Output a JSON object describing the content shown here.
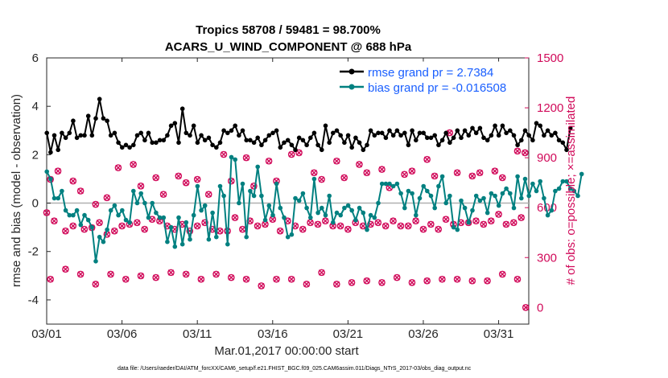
{
  "chart_data": {
    "type": "line",
    "title_line1": "Tropics 58708 / 59481 = 98.700%",
    "title_line2": "ACARS_U_WIND_COMPONENT @ 688 hPa",
    "xlabel": "Mar.01,2017 00:00:00 start",
    "ylabel_left": "rmse and bias (model - observation)",
    "ylabel_right": "# of obs: o=possible; ×=assimilated",
    "xlim": [
      0,
      32
    ],
    "ylim_left": [
      -5,
      6
    ],
    "ylim_right": [
      -100,
      1500
    ],
    "x_ticks": [
      0,
      5,
      10,
      15,
      20,
      25,
      30
    ],
    "x_tick_labels": [
      "03/01",
      "03/06",
      "03/11",
      "03/16",
      "03/21",
      "03/26",
      "03/31"
    ],
    "y_ticks_left": [
      6,
      4,
      2,
      0,
      -2,
      -4
    ],
    "y_tick_labels_left": [
      "6",
      "4",
      "2",
      "0",
      "-2",
      "-4"
    ],
    "y_ticks_right": [
      1500,
      1200,
      900,
      600,
      300,
      0
    ],
    "y_tick_labels_right": [
      "1500",
      "1200",
      "900",
      "600",
      "300",
      "0"
    ],
    "time_step_days": 0.25,
    "series": [
      {
        "name": "rmse",
        "legend": "rmse grand pr = 2.7384",
        "color": "#000000",
        "values": [
          2.9,
          2.1,
          2.8,
          2.2,
          2.9,
          2.7,
          2.9,
          3.4,
          2.7,
          2.8,
          2.8,
          3.6,
          2.8,
          3.5,
          4.3,
          3.5,
          3.4,
          2.8,
          2.9,
          2.5,
          2.3,
          2.4,
          2.3,
          2.4,
          2.8,
          2.9,
          2.6,
          2.9,
          2.5,
          2.5,
          2.6,
          2.6,
          2.8,
          3.2,
          3.3,
          2.5,
          3.9,
          2.9,
          2.8,
          3.2,
          2.5,
          2.8,
          2.6,
          2.7,
          2.4,
          2.3,
          2.5,
          3.0,
          2.9,
          3.0,
          3.2,
          2.8,
          3.0,
          2.6,
          2.6,
          2.5,
          2.7,
          2.4,
          2.6,
          2.8,
          2.9,
          3.0,
          2.3,
          2.5,
          2.6,
          2.4,
          2.2,
          2.7,
          2.6,
          2.4,
          2.7,
          2.9,
          2.4,
          2.2,
          3.2,
          2.5,
          2.9,
          3.0,
          2.8,
          2.5,
          2.8,
          2.3,
          2.7,
          2.5,
          2.2,
          2.4,
          3.0,
          2.8,
          2.9,
          2.9,
          2.7,
          3.0,
          2.8,
          3.0,
          2.8,
          2.9,
          2.4,
          3.0,
          2.6,
          2.9,
          2.9,
          2.7,
          2.7,
          2.8,
          2.4,
          2.6,
          2.9,
          2.5,
          2.7,
          3.0,
          2.7,
          3.0,
          2.8,
          3.1,
          2.9,
          3.1,
          2.7,
          2.6,
          2.8,
          3.2,
          2.8,
          3.2,
          2.9,
          3.0,
          2.8,
          2.4,
          2.6,
          3.0,
          2.8,
          2.6,
          3.3,
          3.2,
          2.8,
          3.0,
          2.8,
          2.9,
          2.6,
          2.5,
          2.2,
          3.1
        ]
      },
      {
        "name": "bias",
        "legend": "bias grand pr = -0.016508",
        "color": "#008080",
        "values": [
          1.3,
          1.0,
          0.2,
          0.2,
          0.5,
          -0.3,
          -0.5,
          -0.5,
          -0.3,
          -0.9,
          -0.5,
          -0.7,
          -1.0,
          -2.4,
          -1.4,
          -1.6,
          -1.1,
          -0.3,
          -0.1,
          -0.5,
          -0.3,
          -0.7,
          -0.8,
          0.5,
          0.0,
          0.4,
          0.0,
          -0.6,
          0.0,
          -0.4,
          -0.6,
          -0.6,
          -1.6,
          -1.0,
          -1.8,
          -0.6,
          -1.7,
          -0.8,
          -1.5,
          -0.5,
          0.7,
          -0.3,
          -0.1,
          -1.5,
          -0.4,
          -1.4,
          0.7,
          0.3,
          -1.7,
          1.9,
          1.8,
          0.0,
          0.8,
          -1.4,
          0.5,
          0.3,
          1.5,
          0.3,
          -0.7,
          -0.1,
          -0.5,
          0.8,
          -0.2,
          -0.6,
          -1.4,
          -1.3,
          0.2,
          0.1,
          0.4,
          -0.2,
          -0.6,
          1.0,
          -0.4,
          -0.2,
          -0.5,
          0.3,
          -0.8,
          -0.4,
          -0.5,
          -0.2,
          -0.1,
          -0.3,
          -0.7,
          -0.2,
          -0.4,
          -1.1,
          -0.5,
          -0.6,
          0.0,
          0.8,
          0.8,
          0.8,
          0.7,
          0.8,
          0.4,
          -0.2,
          0.5,
          0.4,
          -0.5,
          0.2,
          0.7,
          0.5,
          0.3,
          -0.2,
          0.7,
          1.1,
          0.0,
          0.3,
          -1.0,
          -1.1,
          0.1,
          -0.2,
          -0.8,
          -0.3,
          0.3,
          0.1,
          0.2,
          -0.4,
          0.4,
          0.3,
          -0.1,
          0.4,
          0.6,
          0.4,
          -0.2,
          1.1,
          0.2,
          1.0,
          0.3,
          0.8,
          0.5,
          0.9,
          0.2,
          -0.5,
          -0.3,
          0.5,
          0.6,
          0.9,
          0.9,
          0.6,
          0.5,
          0.3,
          1.2
        ]
      }
    ],
    "obs_high": {
      "x": [
        0.25,
        0.75,
        1.75,
        2.25,
        3.25,
        4.0,
        4.75,
        5.75,
        6.25,
        7.25,
        7.75,
        8.75,
        9.25,
        10.0,
        10.75,
        11.75,
        12.25,
        13.25,
        13.75,
        14.75,
        15.25,
        16.25,
        16.75,
        17.75,
        18.25,
        19.25,
        19.75,
        20.75,
        21.25,
        22.25,
        22.75,
        23.75,
        24.25,
        25.25,
        25.75,
        26.75,
        27.25,
        28.25,
        28.75,
        29.75,
        30.25,
        31.25,
        31.75
      ],
      "y": [
        770,
        820,
        760,
        700,
        620,
        660,
        840,
        860,
        730,
        780,
        680,
        790,
        750,
        770,
        680,
        920,
        760,
        900,
        730,
        880,
        760,
        920,
        930,
        810,
        770,
        880,
        780,
        860,
        810,
        830,
        720,
        800,
        820,
        890,
        790,
        1050,
        810,
        790,
        810,
        820,
        780,
        940,
        930
      ]
    },
    "obs_mid": {
      "x": [
        0.0,
        0.5,
        1.25,
        1.75,
        2.5,
        3.0,
        3.5,
        4.0,
        4.5,
        5.0,
        5.5,
        6.0,
        6.5,
        7.0,
        7.5,
        8.0,
        8.5,
        9.0,
        9.5,
        10.0,
        10.5,
        11.0,
        11.5,
        12.0,
        12.5,
        13.0,
        13.5,
        14.0,
        14.5,
        15.0,
        15.5,
        16.0,
        16.5,
        17.0,
        17.5,
        18.0,
        18.5,
        19.0,
        19.5,
        20.0,
        20.5,
        21.0,
        21.5,
        22.0,
        22.5,
        23.0,
        23.5,
        24.0,
        24.5,
        25.0,
        25.5,
        26.0,
        26.5,
        27.0,
        27.5,
        28.0,
        28.5,
        29.0,
        29.5,
        30.0,
        30.5,
        31.0,
        31.5
      ],
      "y": [
        570,
        520,
        460,
        490,
        470,
        480,
        510,
        440,
        460,
        490,
        500,
        510,
        470,
        530,
        520,
        490,
        470,
        500,
        460,
        490,
        510,
        470,
        460,
        460,
        540,
        470,
        520,
        490,
        500,
        530,
        460,
        520,
        490,
        470,
        510,
        500,
        520,
        490,
        490,
        470,
        510,
        490,
        500,
        510,
        490,
        520,
        490,
        490,
        520,
        470,
        500,
        470,
        530,
        500,
        510,
        510,
        520,
        500,
        520,
        560,
        500,
        510,
        540
      ]
    },
    "obs_low": {
      "x": [
        0.25,
        1.25,
        2.25,
        3.25,
        4.25,
        5.25,
        6.25,
        7.25,
        8.25,
        9.25,
        10.25,
        11.25,
        12.25,
        13.25,
        14.25,
        15.25,
        16.25,
        17.25,
        18.25,
        19.25,
        20.25,
        21.25,
        22.25,
        23.25,
        24.25,
        25.25,
        26.25,
        27.25,
        28.25,
        29.25,
        30.25,
        31.25
      ],
      "y": [
        170,
        230,
        200,
        140,
        200,
        170,
        190,
        180,
        210,
        200,
        170,
        200,
        180,
        170,
        130,
        170,
        170,
        140,
        210,
        140,
        150,
        160,
        150,
        180,
        150,
        160,
        170,
        170,
        160,
        160,
        200,
        170
      ]
    },
    "obs_zero_x": 31.8
  },
  "footer": "data file: /Users/raeder/DAI/ATM_forcXX/CAM6_setup/f.e21.FHIST_BGC.f09_025.CAM6assim.011/Diags_NTrS_2017-03/obs_diag_output.nc",
  "colors": {
    "rmse": "#000000",
    "bias": "#008080",
    "obs": "#d10a5a",
    "zero_line": "#b0b0b0",
    "legend_text": "#1a5fff"
  }
}
